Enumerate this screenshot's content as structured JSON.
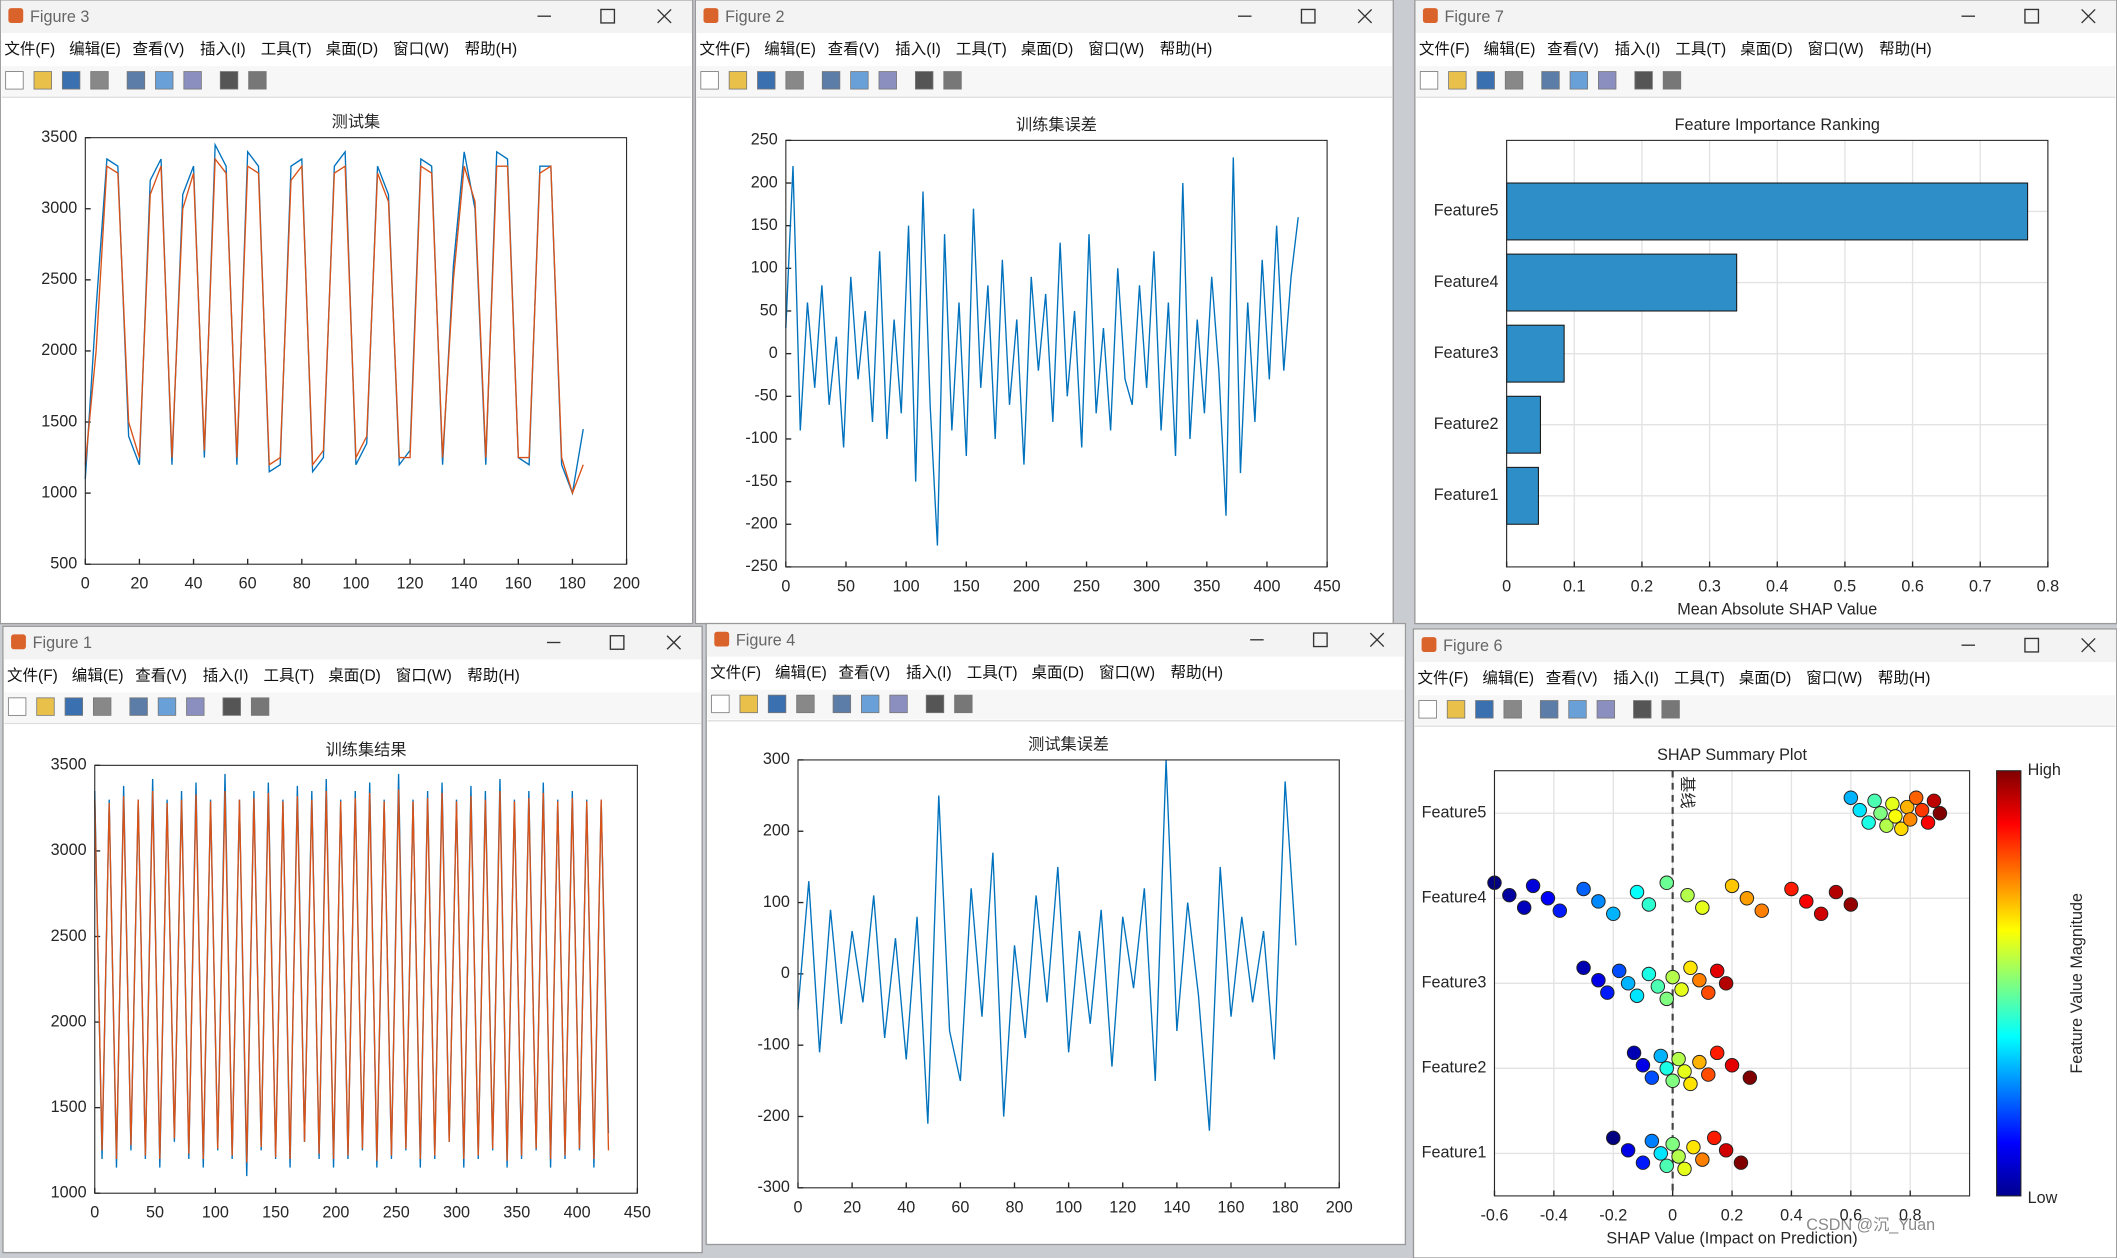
{
  "menu": [
    "文件(F)",
    "编辑(E)",
    "查看(V)",
    "插入(I)",
    "工具(T)",
    "桌面(D)",
    "窗口(W)",
    "帮助(H)"
  ],
  "watermark": "CSDN @沉_Yuan",
  "windows": [
    {
      "title": "Figure 3",
      "chart": {
        "type": "line",
        "title": "测试集",
        "x": [
          0,
          4,
          8,
          12,
          16,
          20,
          24,
          28,
          32,
          36,
          40,
          44,
          48,
          52,
          56,
          60,
          64,
          68,
          72,
          76,
          80,
          84,
          88,
          92,
          96,
          100,
          104,
          108,
          112,
          116,
          120,
          124,
          128,
          132,
          136,
          140,
          144,
          148,
          152,
          156,
          160,
          164,
          168,
          172,
          176,
          180,
          184
        ],
        "series": [
          {
            "color": "#0072BD",
            "values": [
              1100,
              2300,
              3350,
              3300,
              1400,
              1200,
              3200,
              3350,
              1200,
              3100,
              3300,
              1250,
              3450,
              3300,
              1200,
              3400,
              3300,
              1150,
              1200,
              3300,
              3350,
              1150,
              1250,
              3300,
              3400,
              1200,
              1350,
              3300,
              3100,
              1200,
              1300,
              3350,
              3300,
              1200,
              2600,
              3400,
              3000,
              1200,
              3400,
              3350,
              1250,
              1200,
              3300,
              3300,
              1200,
              1000,
              1450
            ]
          },
          {
            "color": "#D95319",
            "values": [
              1200,
              2000,
              3300,
              3250,
              1500,
              1250,
              3100,
              3300,
              1250,
              3000,
              3250,
              1300,
              3350,
              3250,
              1250,
              3300,
              3250,
              1200,
              1250,
              3200,
              3300,
              1200,
              1300,
              3250,
              3300,
              1250,
              1400,
              3250,
              3050,
              1250,
              1250,
              3300,
              3250,
              1250,
              2500,
              3300,
              3050,
              1250,
              3300,
              3300,
              1250,
              1250,
              3250,
              3300,
              1250,
              1000,
              1200
            ]
          }
        ],
        "xlim": [
          0,
          200
        ],
        "xticks": [
          0,
          20,
          40,
          60,
          80,
          100,
          120,
          140,
          160,
          180,
          200
        ],
        "ylim": [
          500,
          3500
        ],
        "yticks": [
          500,
          1000,
          1500,
          2000,
          2500,
          3000,
          3500
        ],
        "grid": false
      }
    },
    {
      "title": "Figure 2",
      "chart": {
        "type": "line",
        "title": "训练集误差",
        "x": [
          0,
          6,
          12,
          18,
          24,
          30,
          36,
          42,
          48,
          54,
          60,
          66,
          72,
          78,
          84,
          90,
          96,
          102,
          108,
          114,
          120,
          126,
          132,
          138,
          144,
          150,
          156,
          162,
          168,
          174,
          180,
          186,
          192,
          198,
          204,
          210,
          216,
          222,
          228,
          234,
          240,
          246,
          252,
          258,
          264,
          270,
          276,
          282,
          288,
          294,
          300,
          306,
          312,
          318,
          324,
          330,
          336,
          342,
          348,
          354,
          360,
          366,
          372,
          378,
          384,
          390,
          396,
          402,
          408,
          414,
          420,
          426
        ],
        "series": [
          {
            "color": "#0072BD",
            "values": [
              30,
              220,
              -90,
              60,
              -40,
              80,
              -60,
              20,
              -110,
              90,
              -30,
              50,
              -80,
              120,
              -100,
              40,
              -70,
              150,
              -150,
              190,
              -60,
              -225,
              140,
              -90,
              60,
              -120,
              170,
              -40,
              80,
              -100,
              110,
              -60,
              40,
              -130,
              90,
              -20,
              70,
              -80,
              130,
              -50,
              50,
              -110,
              140,
              -70,
              30,
              -90,
              100,
              -30,
              -60,
              80,
              -40,
              120,
              -90,
              60,
              -120,
              200,
              -100,
              40,
              -70,
              90,
              -20,
              -190,
              230,
              -140,
              60,
              -80,
              110,
              -30,
              150,
              -20,
              90,
              160
            ]
          }
        ],
        "xlim": [
          0,
          450
        ],
        "xticks": [
          0,
          50,
          100,
          150,
          200,
          250,
          300,
          350,
          400,
          450
        ],
        "ylim": [
          -250,
          250
        ],
        "yticks": [
          -250,
          -200,
          -150,
          -100,
          -50,
          0,
          50,
          100,
          150,
          200,
          250
        ],
        "grid": false
      }
    },
    {
      "title": "Figure 7",
      "chart": {
        "type": "barh",
        "title": "Feature Importance Ranking",
        "categories": [
          "Feature1",
          "Feature2",
          "Feature3",
          "Feature4",
          "Feature5"
        ],
        "values": [
          0.047,
          0.05,
          0.085,
          0.34,
          0.77
        ],
        "color": "#2E8FC8",
        "x_label": "Mean Absolute SHAP Value",
        "xlim": [
          0,
          0.8
        ],
        "xticks": [
          0,
          0.1,
          0.2,
          0.3,
          0.4,
          0.5,
          0.6,
          0.7,
          0.8
        ],
        "grid": true
      }
    },
    {
      "title": "Figure 1",
      "chart": {
        "type": "line",
        "title": "训练集结果",
        "x": [
          0,
          6,
          12,
          18,
          24,
          30,
          36,
          42,
          48,
          54,
          60,
          66,
          72,
          78,
          84,
          90,
          96,
          102,
          108,
          114,
          120,
          126,
          132,
          138,
          144,
          150,
          156,
          162,
          168,
          174,
          180,
          186,
          192,
          198,
          204,
          210,
          216,
          222,
          228,
          234,
          240,
          246,
          252,
          258,
          264,
          270,
          276,
          282,
          288,
          294,
          300,
          306,
          312,
          318,
          324,
          330,
          336,
          342,
          348,
          354,
          360,
          366,
          372,
          378,
          384,
          390,
          396,
          402,
          408,
          414,
          420,
          426
        ],
        "series": [
          {
            "color": "#0072BD",
            "values": [
              3350,
              1200,
              3300,
              1150,
              3380,
              1250,
              3300,
              1200,
              3420,
              1150,
              3300,
              1300,
              3350,
              1200,
              3400,
              1150,
              3300,
              1250,
              3450,
              1200,
              3300,
              1100,
              3350,
              1250,
              3400,
              1200,
              3300,
              1150,
              3380,
              1300,
              3350,
              1200,
              3420,
              1150,
              3300,
              1200,
              3350,
              1250,
              3400,
              1150,
              3300,
              1200,
              3450,
              1250,
              3300,
              1150,
              3350,
              1200,
              3400,
              1300,
              3300,
              1150,
              3380,
              1200,
              3350,
              1250,
              3420,
              1150,
              3300,
              1200,
              3350,
              1250,
              3400,
              1150,
              3300,
              1200,
              3350,
              1250,
              3300,
              1150,
              3300,
              1350
            ]
          },
          {
            "color": "#D95319",
            "values": [
              3300,
              1250,
              3280,
              1200,
              3320,
              1280,
              3300,
              1220,
              3350,
              1200,
              3280,
              1320,
              3300,
              1230,
              3330,
              1200,
              3290,
              1260,
              3350,
              1220,
              3300,
              1180,
              3310,
              1270,
              3340,
              1210,
              3290,
              1200,
              3320,
              1300,
              3300,
              1230,
              3350,
              1200,
              3290,
              1220,
              3310,
              1260,
              3340,
              1190,
              3290,
              1220,
              3360,
              1260,
              3290,
              1200,
              3310,
              1220,
              3340,
              1300,
              3290,
              1200,
              3320,
              1220,
              3300,
              1260,
              3350,
              1190,
              3290,
              1220,
              3310,
              1260,
              3340,
              1200,
              3290,
              1220,
              3310,
              1260,
              3290,
              1200,
              3300,
              1250
            ]
          }
        ],
        "xlim": [
          0,
          450
        ],
        "xticks": [
          0,
          50,
          100,
          150,
          200,
          250,
          300,
          350,
          400,
          450
        ],
        "ylim": [
          1000,
          3500
        ],
        "yticks": [
          1000,
          1500,
          2000,
          2500,
          3000,
          3500
        ],
        "grid": false
      }
    },
    {
      "title": "Figure 4",
      "chart": {
        "type": "line",
        "title": "测试集误差",
        "x": [
          0,
          4,
          8,
          12,
          16,
          20,
          24,
          28,
          32,
          36,
          40,
          44,
          48,
          52,
          56,
          60,
          64,
          68,
          72,
          76,
          80,
          84,
          88,
          92,
          96,
          100,
          104,
          108,
          112,
          116,
          120,
          124,
          128,
          132,
          136,
          140,
          144,
          148,
          152,
          156,
          160,
          164,
          168,
          172,
          176,
          180,
          184
        ],
        "series": [
          {
            "color": "#0072BD",
            "values": [
              -50,
              130,
              -110,
              90,
              -70,
              60,
              -40,
              110,
              -90,
              50,
              -120,
              80,
              -210,
              250,
              -80,
              -150,
              120,
              -60,
              170,
              -200,
              40,
              -90,
              110,
              -40,
              150,
              -110,
              60,
              -70,
              90,
              -130,
              80,
              -20,
              120,
              -150,
              300,
              -80,
              100,
              -30,
              -220,
              150,
              -60,
              80,
              -40,
              60,
              -120,
              270,
              40
            ]
          }
        ],
        "xlim": [
          0,
          200
        ],
        "xticks": [
          0,
          20,
          40,
          60,
          80,
          100,
          120,
          140,
          160,
          180,
          200
        ],
        "ylim": [
          -300,
          300
        ],
        "yticks": [
          -300,
          -200,
          -100,
          0,
          100,
          200,
          300
        ],
        "grid": false
      }
    },
    {
      "title": "Figure 6",
      "chart": {
        "type": "scatter",
        "title": "SHAP Summary Plot",
        "categories": [
          "Feature1",
          "Feature2",
          "Feature3",
          "Feature4",
          "Feature5"
        ],
        "series": [
          {
            "values": [
              -0.2,
              -0.15,
              -0.1,
              -0.07,
              -0.04,
              -0.02,
              0,
              0.02,
              0.04,
              0.07,
              0.1,
              0.14,
              0.18,
              0.23
            ],
            "color_values": [
              0,
              0.1,
              0.15,
              0.25,
              0.35,
              0.45,
              0.5,
              0.55,
              0.6,
              0.65,
              0.75,
              0.85,
              0.92,
              1
            ]
          },
          {
            "values": [
              -0.13,
              -0.1,
              -0.07,
              -0.04,
              -0.02,
              0,
              0.02,
              0.04,
              0.06,
              0.09,
              0.12,
              0.15,
              0.2,
              0.26
            ],
            "color_values": [
              0.05,
              0.1,
              0.2,
              0.3,
              0.4,
              0.5,
              0.55,
              0.6,
              0.65,
              0.7,
              0.8,
              0.85,
              0.9,
              1
            ]
          },
          {
            "values": [
              -0.3,
              -0.25,
              -0.22,
              -0.18,
              -0.15,
              -0.12,
              -0.08,
              -0.05,
              -0.02,
              0,
              0.03,
              0.06,
              0.09,
              0.12,
              0.15,
              0.18
            ],
            "color_values": [
              0.05,
              0.1,
              0.15,
              0.2,
              0.3,
              0.35,
              0.4,
              0.45,
              0.5,
              0.55,
              0.6,
              0.65,
              0.75,
              0.8,
              0.9,
              0.95
            ]
          },
          {
            "values": [
              -0.6,
              -0.55,
              -0.5,
              -0.47,
              -0.42,
              -0.38,
              -0.3,
              -0.25,
              -0.2,
              -0.12,
              -0.08,
              -0.02,
              0.05,
              0.1,
              0.2,
              0.25,
              0.3,
              0.4,
              0.45,
              0.5,
              0.55,
              0.6
            ],
            "color_values": [
              0,
              0.03,
              0.06,
              0.09,
              0.12,
              0.15,
              0.22,
              0.26,
              0.3,
              0.38,
              0.42,
              0.48,
              0.55,
              0.6,
              0.68,
              0.72,
              0.75,
              0.85,
              0.88,
              0.92,
              0.95,
              0.98
            ]
          },
          {
            "values": [
              0.6,
              0.63,
              0.66,
              0.68,
              0.7,
              0.72,
              0.74,
              0.75,
              0.77,
              0.79,
              0.8,
              0.82,
              0.84,
              0.86,
              0.88,
              0.9
            ],
            "color_values": [
              0.3,
              0.35,
              0.4,
              0.45,
              0.5,
              0.55,
              0.6,
              0.62,
              0.66,
              0.7,
              0.74,
              0.78,
              0.82,
              0.88,
              0.94,
              1
            ]
          }
        ],
        "x_label": "SHAP Value (Impact on Prediction)",
        "baseline": {
          "value": 0,
          "label": "基线"
        },
        "colorbar": {
          "label": "Feature Value Magnitude",
          "high": "High",
          "low": "Low"
        },
        "xlim": [
          -0.6,
          1.0
        ],
        "xticks": [
          -0.6,
          -0.4,
          -0.2,
          0,
          0.2,
          0.4,
          0.6,
          0.8
        ],
        "grid": true
      }
    }
  ]
}
